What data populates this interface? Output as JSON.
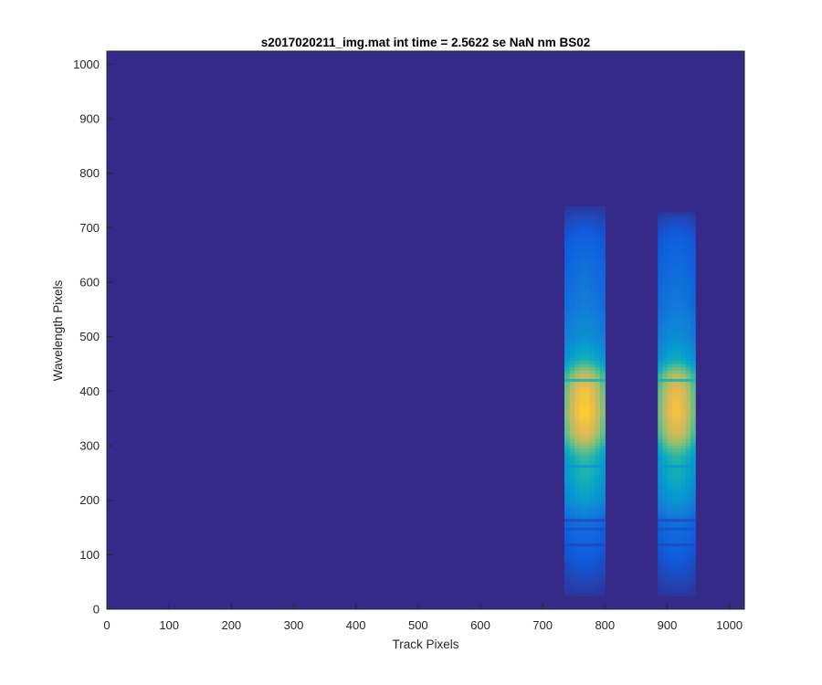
{
  "chart_data": {
    "type": "heatmap",
    "title": "s2017020211_img.mat int time = 2.5622 se  NaN nm BS02",
    "xlabel": "Track Pixels",
    "ylabel": "Wavelength Pixels",
    "xlim": [
      0,
      1024
    ],
    "ylim": [
      0,
      1024
    ],
    "xticks": [
      0,
      100,
      200,
      300,
      400,
      500,
      600,
      700,
      800,
      900,
      1000
    ],
    "yticks": [
      0,
      100,
      200,
      300,
      400,
      500,
      600,
      700,
      800,
      900,
      1000
    ],
    "colormap": "parula",
    "background_color": "#352A87",
    "grid": false,
    "legend": "none",
    "bands": [
      {
        "x_range": [
          735,
          800
        ],
        "y_range": [
          25,
          740
        ],
        "profile": [
          {
            "y": 25,
            "level": 0.04
          },
          {
            "y": 60,
            "level": 0.1
          },
          {
            "y": 100,
            "level": 0.16
          },
          {
            "y": 130,
            "level": 0.2
          },
          {
            "y": 160,
            "level": 0.24
          },
          {
            "y": 200,
            "level": 0.45
          },
          {
            "y": 240,
            "level": 0.55
          },
          {
            "y": 280,
            "level": 0.6
          },
          {
            "y": 320,
            "level": 0.85
          },
          {
            "y": 360,
            "level": 0.93
          },
          {
            "y": 400,
            "level": 0.9
          },
          {
            "y": 430,
            "level": 0.8
          },
          {
            "y": 460,
            "level": 0.55
          },
          {
            "y": 500,
            "level": 0.4
          },
          {
            "y": 560,
            "level": 0.3
          },
          {
            "y": 620,
            "level": 0.25
          },
          {
            "y": 680,
            "level": 0.18
          },
          {
            "y": 720,
            "level": 0.1
          },
          {
            "y": 740,
            "level": 0.04
          }
        ]
      },
      {
        "x_range": [
          885,
          945
        ],
        "y_range": [
          25,
          730
        ],
        "profile": [
          {
            "y": 25,
            "level": 0.04
          },
          {
            "y": 60,
            "level": 0.1
          },
          {
            "y": 100,
            "level": 0.16
          },
          {
            "y": 130,
            "level": 0.2
          },
          {
            "y": 160,
            "level": 0.24
          },
          {
            "y": 200,
            "level": 0.42
          },
          {
            "y": 240,
            "level": 0.52
          },
          {
            "y": 280,
            "level": 0.58
          },
          {
            "y": 320,
            "level": 0.82
          },
          {
            "y": 360,
            "level": 0.9
          },
          {
            "y": 400,
            "level": 0.87
          },
          {
            "y": 430,
            "level": 0.78
          },
          {
            "y": 460,
            "level": 0.52
          },
          {
            "y": 500,
            "level": 0.38
          },
          {
            "y": 560,
            "level": 0.28
          },
          {
            "y": 620,
            "level": 0.23
          },
          {
            "y": 680,
            "level": 0.17
          },
          {
            "y": 715,
            "level": 0.1
          },
          {
            "y": 730,
            "level": 0.04
          }
        ]
      }
    ],
    "lines": [
      {
        "y": 262,
        "level": 0.42
      },
      {
        "y": 420,
        "level": 0.55
      },
      {
        "y": 163,
        "level": 0.1
      },
      {
        "y": 147,
        "level": 0.12
      },
      {
        "y": 118,
        "level": 0.1
      }
    ]
  }
}
